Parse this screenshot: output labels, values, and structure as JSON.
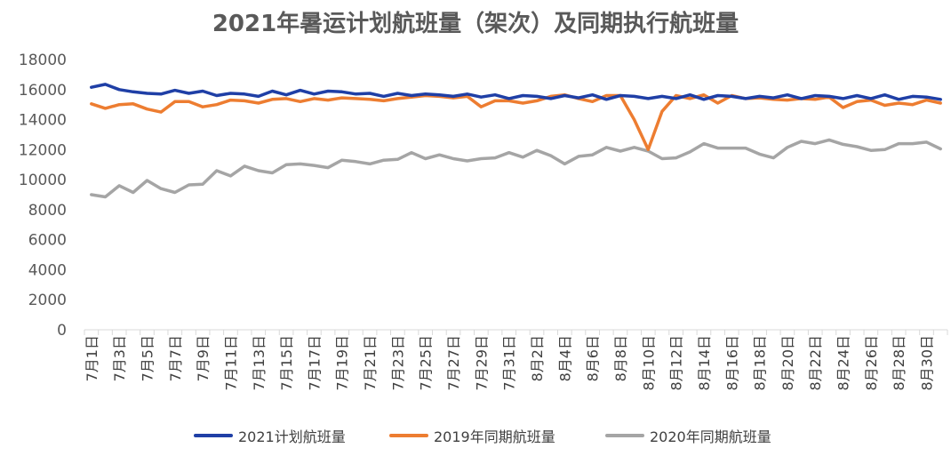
{
  "chart_data": {
    "type": "line",
    "title": "2021年暑运计划航班量（架次）及同期执行航班量",
    "xlabel": "",
    "ylabel": "",
    "ylim": [
      0,
      18000
    ],
    "yticks": [
      0,
      2000,
      4000,
      6000,
      8000,
      10000,
      12000,
      14000,
      16000,
      18000
    ],
    "grid": false,
    "legend_position": "bottom",
    "categories": [
      "7月1日",
      "7月2日",
      "7月3日",
      "7月4日",
      "7月5日",
      "7月6日",
      "7月7日",
      "7月8日",
      "7月9日",
      "7月10日",
      "7月11日",
      "7月12日",
      "7月13日",
      "7月14日",
      "7月15日",
      "7月16日",
      "7月17日",
      "7月18日",
      "7月19日",
      "7月20日",
      "7月21日",
      "7月22日",
      "7月23日",
      "7月24日",
      "7月25日",
      "7月26日",
      "7月27日",
      "7月28日",
      "7月29日",
      "7月30日",
      "7月31日",
      "8月1日",
      "8月2日",
      "8月3日",
      "8月4日",
      "8月5日",
      "8月6日",
      "8月7日",
      "8月8日",
      "8月9日",
      "8月10日",
      "8月11日",
      "8月12日",
      "8月13日",
      "8月14日",
      "8月15日",
      "8月16日",
      "8月17日",
      "8月18日",
      "8月19日",
      "8月20日",
      "8月21日",
      "8月22日",
      "8月23日",
      "8月24日",
      "8月25日",
      "8月26日",
      "8月27日",
      "8月28日",
      "8月29日",
      "8月30日",
      "8月31日"
    ],
    "x_tick_labels": [
      "7月1日",
      "7月3日",
      "7月5日",
      "7月7日",
      "7月9日",
      "7月11日",
      "7月13日",
      "7月15日",
      "7月17日",
      "7月19日",
      "7月21日",
      "7月23日",
      "7月25日",
      "7月27日",
      "7月29日",
      "7月31日",
      "8月2日",
      "8月4日",
      "8月6日",
      "8月8日",
      "8月10日",
      "8月12日",
      "8月14日",
      "8月16日",
      "8月18日",
      "8月20日",
      "8月22日",
      "8月24日",
      "8月26日",
      "8月28日",
      "8月30日"
    ],
    "series": [
      {
        "name": "2021计划航班量",
        "color": "#1f3fa6",
        "values": [
          16150,
          16350,
          16000,
          15850,
          15750,
          15700,
          15950,
          15750,
          15900,
          15600,
          15750,
          15700,
          15550,
          15900,
          15650,
          15950,
          15700,
          15900,
          15850,
          15700,
          15750,
          15550,
          15750,
          15600,
          15700,
          15650,
          15550,
          15700,
          15500,
          15650,
          15400,
          15600,
          15550,
          15400,
          15600,
          15450,
          15650,
          15350,
          15600,
          15550,
          15400,
          15550,
          15400,
          15650,
          15350,
          15600,
          15550,
          15400,
          15550,
          15450,
          15650,
          15400,
          15600,
          15550,
          15400,
          15600,
          15400,
          15650,
          15350,
          15550,
          15500,
          15350
        ]
      },
      {
        "name": "2019年同期航班量",
        "color": "#ed7d31",
        "values": [
          15050,
          14750,
          15000,
          15050,
          14700,
          14500,
          15200,
          15200,
          14850,
          15000,
          15300,
          15250,
          15100,
          15350,
          15400,
          15200,
          15400,
          15300,
          15450,
          15400,
          15350,
          15250,
          15400,
          15500,
          15600,
          15550,
          15450,
          15550,
          14850,
          15250,
          15250,
          15100,
          15250,
          15550,
          15650,
          15400,
          15200,
          15600,
          15600,
          14000,
          12000,
          14550,
          15600,
          15400,
          15650,
          15100,
          15600,
          15400,
          15450,
          15350,
          15300,
          15400,
          15350,
          15500,
          14800,
          15200,
          15300,
          14950,
          15100,
          15000,
          15300,
          15100
        ]
      },
      {
        "name": "2020年同期航班量",
        "color": "#a5a5a5",
        "values": [
          9000,
          8850,
          9600,
          9150,
          9950,
          9400,
          9150,
          9650,
          9700,
          10600,
          10250,
          10900,
          10600,
          10450,
          11000,
          11050,
          10950,
          10800,
          11300,
          11200,
          11050,
          11300,
          11350,
          11800,
          11400,
          11650,
          11400,
          11250,
          11400,
          11450,
          11800,
          11500,
          11950,
          11600,
          11050,
          11550,
          11650,
          12150,
          11900,
          12150,
          11900,
          11400,
          11450,
          11850,
          12400,
          12100,
          12100,
          12100,
          11700,
          11450,
          12150,
          12550,
          12400,
          12650,
          12350,
          12200,
          11950,
          12000,
          12400,
          12400,
          12500,
          12050
        ]
      }
    ]
  }
}
